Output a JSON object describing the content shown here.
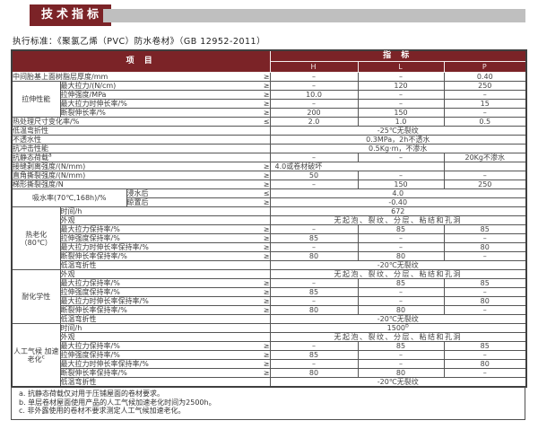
{
  "page": {
    "title": "技术指标",
    "standard_line": "执行标准：《聚氯乙烯（PVC）防水卷材》（GB 12952-2011）"
  },
  "colors": {
    "accent_red": "#7b2327",
    "bar_gray": "#bfbfbf",
    "border_dark": "#3f3f3f"
  },
  "table": {
    "header": {
      "item_label": "项 目",
      "index_label": "指 标",
      "columns": [
        "H",
        "L",
        "P"
      ]
    },
    "rows": [
      {
        "item": "中间胎基上面树脂层厚度/mm",
        "icols": 3,
        "sym": "≥",
        "vals": [
          {
            "t": "–"
          },
          {
            "t": "–"
          },
          {
            "t": "0.40"
          }
        ]
      },
      {
        "group": {
          "label": "拉伸性能",
          "sup": "",
          "rowspan": 4,
          "colspan": 1
        },
        "item": "最大拉力/(N/cm)",
        "icols": 2,
        "sym": "≥",
        "vals": [
          {
            "t": "–"
          },
          {
            "t": "120"
          },
          {
            "t": "250"
          }
        ]
      },
      {
        "item": "拉伸强度/MPa",
        "icols": 2,
        "sym": "≥",
        "vals": [
          {
            "t": "10.0"
          },
          {
            "t": "–"
          },
          {
            "t": "–"
          }
        ]
      },
      {
        "item": "最大拉力时伸长率/%",
        "icols": 2,
        "sym": "≥",
        "vals": [
          {
            "t": "–"
          },
          {
            "t": "–"
          },
          {
            "t": "15"
          }
        ]
      },
      {
        "item": "断裂伸长率/%",
        "icols": 2,
        "sym": "≥",
        "vals": [
          {
            "t": "200"
          },
          {
            "t": "150"
          },
          {
            "t": "–"
          }
        ]
      },
      {
        "item": "热处理尺寸变化率/%",
        "icols": 3,
        "sym": "≤",
        "vals": [
          {
            "t": "2.0"
          },
          {
            "t": "1.0"
          },
          {
            "t": "0.5"
          }
        ]
      },
      {
        "item": "低温弯折性",
        "icols": 3,
        "sym": "",
        "vals": [
          {
            "t": "-25℃无裂纹",
            "cs": 3
          }
        ]
      },
      {
        "item": "不透水性",
        "icols": 3,
        "sym": "",
        "vals": [
          {
            "t": "0.3MPa，2h不透水",
            "cs": 3
          }
        ]
      },
      {
        "item": "抗冲击性能",
        "icols": 3,
        "sym": "",
        "vals": [
          {
            "t": "0.5Kg·m，不渗水",
            "cs": 3
          }
        ]
      },
      {
        "item": "抗静态荷载",
        "item_sup": "a",
        "icols": 3,
        "sym": "",
        "vals": [
          {
            "t": "–"
          },
          {
            "t": "–"
          },
          {
            "t": "20Kg不渗水"
          }
        ]
      },
      {
        "item": "接缝剥离强度/(N/mm)",
        "icols": 3,
        "sym": "≥",
        "vals": [
          {
            "t": "4.0或卷材破坏",
            "cs": 2,
            "left": true
          },
          {
            "t": "",
            "cs": 1
          }
        ]
      },
      {
        "item": "直角撕裂强度/(N/mm)",
        "icols": 3,
        "sym": "≥",
        "vals": [
          {
            "t": "50"
          },
          {
            "t": "–"
          },
          {
            "t": "–"
          }
        ]
      },
      {
        "item": "梯形撕裂强度/N",
        "icols": 3,
        "sym": "≥",
        "vals": [
          {
            "t": "–"
          },
          {
            "t": "150"
          },
          {
            "t": "250"
          }
        ]
      },
      {
        "group": {
          "label": "吸水率(70℃,168h)/%",
          "sup": "",
          "rowspan": 2,
          "colspan": 2
        },
        "item": "浸水后",
        "icols": 1,
        "sym": "≤",
        "vals": [
          {
            "t": "4.0",
            "cs": 3
          }
        ]
      },
      {
        "item": "晾置后",
        "icols": 1,
        "sym": "≥",
        "vals": [
          {
            "t": "-0.40",
            "cs": 3
          }
        ]
      },
      {
        "group": {
          "label": "热老化 （80℃）",
          "sup": "",
          "rowspan": 7,
          "colspan": 1
        },
        "item": "时间/h",
        "icols": 2,
        "sym": "",
        "vals": [
          {
            "t": "672",
            "cs": 3
          }
        ]
      },
      {
        "item": "外观",
        "icols": 2,
        "sym": "",
        "vals": [
          {
            "t": "无起泡、裂纹、分层、粘结和孔洞",
            "cs": 3,
            "wide": true
          }
        ]
      },
      {
        "item": "最大拉力保持率/%",
        "icols": 2,
        "sym": "≥",
        "vals": [
          {
            "t": "–"
          },
          {
            "t": "85"
          },
          {
            "t": "85"
          }
        ]
      },
      {
        "item": "拉伸强度保持率/%",
        "icols": 2,
        "sym": "≥",
        "vals": [
          {
            "t": "85"
          },
          {
            "t": "–"
          },
          {
            "t": "–"
          }
        ]
      },
      {
        "item": "最大拉力时伸长率保持率/%",
        "icols": 2,
        "sym": "≥",
        "vals": [
          {
            "t": "–"
          },
          {
            "t": "–"
          },
          {
            "t": "80"
          }
        ]
      },
      {
        "item": "断裂伸长率保持率/%",
        "icols": 2,
        "sym": "≥",
        "vals": [
          {
            "t": "80"
          },
          {
            "t": "80"
          },
          {
            "t": "–"
          }
        ]
      },
      {
        "item": "低温弯折性",
        "icols": 2,
        "sym": "",
        "vals": [
          {
            "t": "-20℃无裂纹",
            "cs": 3
          }
        ]
      },
      {
        "group": {
          "label": "耐化学性",
          "sup": "",
          "rowspan": 6,
          "colspan": 1
        },
        "item": "外观",
        "icols": 2,
        "sym": "",
        "vals": [
          {
            "t": "无起泡、裂纹、分层、粘结和孔洞",
            "cs": 3,
            "wide": true
          }
        ]
      },
      {
        "item": "最大拉力保持率/%",
        "icols": 2,
        "sym": "≥",
        "vals": [
          {
            "t": "–"
          },
          {
            "t": "85"
          },
          {
            "t": "85"
          }
        ]
      },
      {
        "item": "拉伸强度保持率/%",
        "icols": 2,
        "sym": "≥",
        "vals": [
          {
            "t": "85"
          },
          {
            "t": "–"
          },
          {
            "t": "–"
          }
        ]
      },
      {
        "item": "最大拉力时伸长率保持率/%",
        "icols": 2,
        "sym": "≥",
        "vals": [
          {
            "t": "–"
          },
          {
            "t": "–"
          },
          {
            "t": "80"
          }
        ]
      },
      {
        "item": "断裂伸长率保持率/%",
        "icols": 2,
        "sym": "≥",
        "vals": [
          {
            "t": "80"
          },
          {
            "t": "80"
          },
          {
            "t": "–"
          }
        ]
      },
      {
        "item": "低温弯折性",
        "icols": 2,
        "sym": "",
        "vals": [
          {
            "t": "-20℃无裂纹",
            "cs": 3
          }
        ]
      },
      {
        "group": {
          "label": "人工气候 加速老化",
          "sup": "c",
          "rowspan": 7,
          "colspan": 1
        },
        "item": "时间/h",
        "icols": 2,
        "sym": "",
        "vals": [
          {
            "t": "1500",
            "sup": "b",
            "cs": 3
          }
        ]
      },
      {
        "item": "外观",
        "icols": 2,
        "sym": "",
        "vals": [
          {
            "t": "无起泡、裂纹、分层、粘结和孔洞",
            "cs": 3,
            "wide": true
          }
        ]
      },
      {
        "item": "最大拉力保持率/%",
        "icols": 2,
        "sym": "≥",
        "vals": [
          {
            "t": "–"
          },
          {
            "t": "85"
          },
          {
            "t": "85"
          }
        ]
      },
      {
        "item": "拉伸强度保持率/%",
        "icols": 2,
        "sym": "≥",
        "vals": [
          {
            "t": "85"
          },
          {
            "t": "–"
          },
          {
            "t": "–"
          }
        ]
      },
      {
        "item": "最大拉力时伸长率保持率/%",
        "icols": 2,
        "sym": "≥",
        "vals": [
          {
            "t": "–"
          },
          {
            "t": "–"
          },
          {
            "t": "80"
          }
        ]
      },
      {
        "item": "断裂伸长率保持率/%",
        "icols": 2,
        "sym": "≥",
        "vals": [
          {
            "t": "80"
          },
          {
            "t": "80"
          },
          {
            "t": "–"
          }
        ]
      },
      {
        "item": "低温弯折性",
        "icols": 2,
        "sym": "",
        "vals": [
          {
            "t": "-20℃无裂纹",
            "cs": 3
          }
        ]
      }
    ],
    "footnotes": [
      "a. 抗静态荷载仅对用于压铺屋面的卷材要求。",
      "b. 单层卷材屋面使用产品的人工气候加速老化时间为2500h。",
      "c. 非外露使用的卷材不要求测定人工气候加速老化。"
    ]
  }
}
